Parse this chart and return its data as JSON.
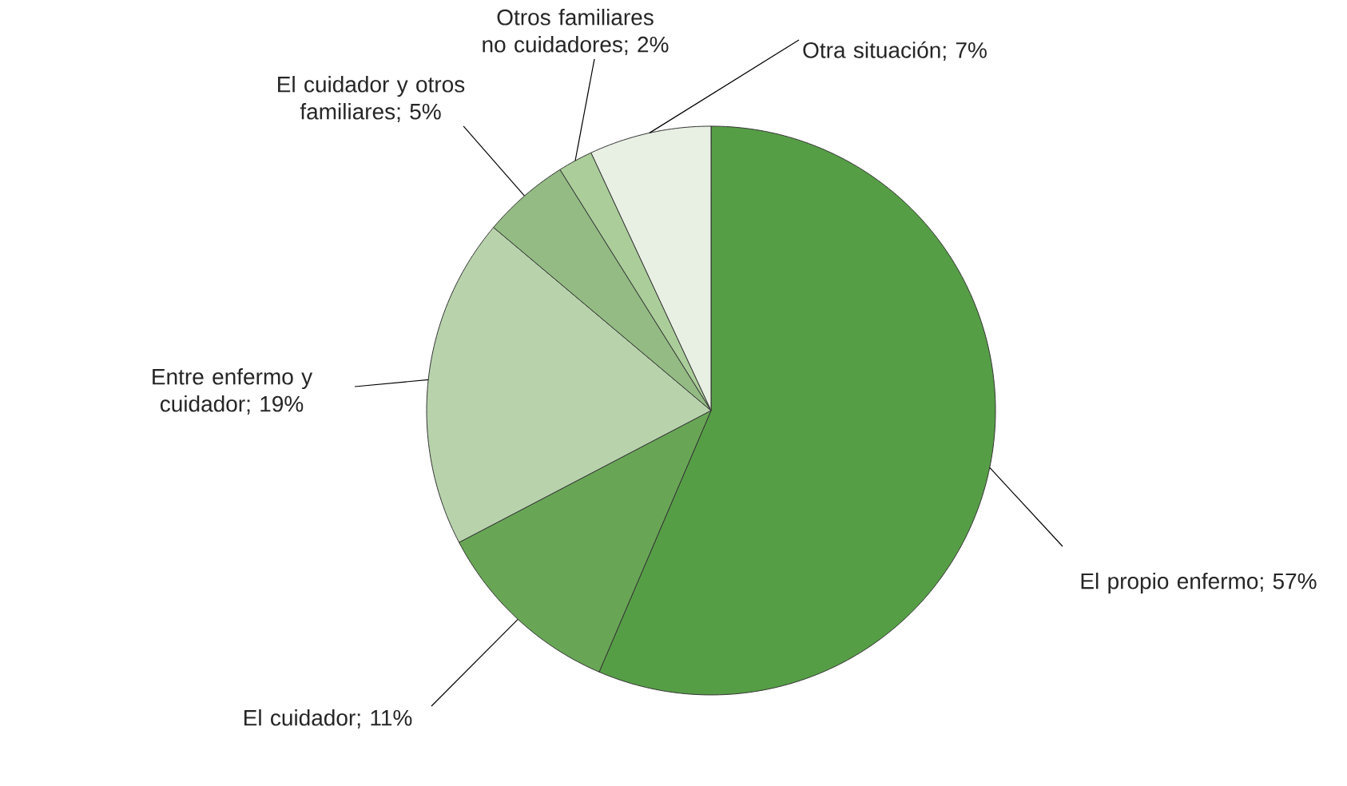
{
  "chart_data": {
    "type": "pie",
    "categories": [
      "El propio enfermo; 57%",
      "El cuidador; 11%",
      "Entre enfermo y cuidador; 19%",
      "El cuidador y otros familiares; 5%",
      "Otros familiares no cuidadores; 2%",
      "Otra situación; 7%"
    ],
    "values": [
      57,
      11,
      19,
      5,
      2,
      7
    ],
    "colors": [
      "#569e46",
      "#68a656",
      "#b8d3ac",
      "#93bb83",
      "#aacd9a",
      "#e8efe3"
    ]
  }
}
